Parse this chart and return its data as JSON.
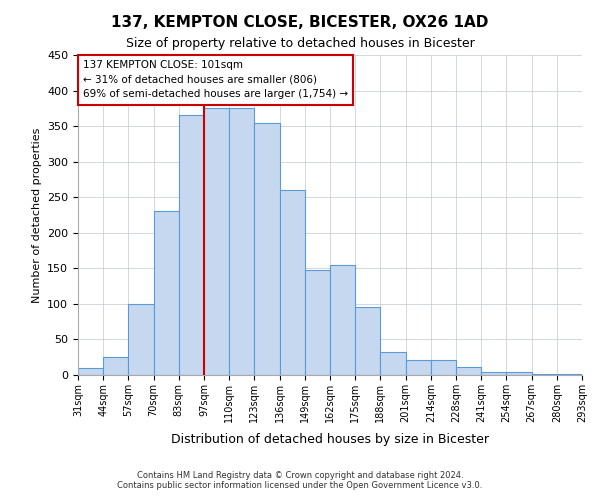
{
  "title": "137, KEMPTON CLOSE, BICESTER, OX26 1AD",
  "subtitle": "Size of property relative to detached houses in Bicester",
  "xlabel": "Distribution of detached houses by size in Bicester",
  "ylabel": "Number of detached properties",
  "bin_labels": [
    "31sqm",
    "44sqm",
    "57sqm",
    "70sqm",
    "83sqm",
    "97sqm",
    "110sqm",
    "123sqm",
    "136sqm",
    "149sqm",
    "162sqm",
    "175sqm",
    "188sqm",
    "201sqm",
    "214sqm",
    "228sqm",
    "241sqm",
    "254sqm",
    "267sqm",
    "280sqm",
    "293sqm"
  ],
  "bar_heights": [
    10,
    25,
    100,
    230,
    365,
    375,
    375,
    355,
    260,
    147,
    155,
    95,
    33,
    21,
    21,
    11,
    4,
    4,
    2,
    2
  ],
  "bar_color": "#c5d8f0",
  "bar_edge_color": "#5b9bd5",
  "vline_x": 5.0,
  "vline_color": "#cc0000",
  "ylim": [
    0,
    450
  ],
  "yticks": [
    0,
    50,
    100,
    150,
    200,
    250,
    300,
    350,
    400,
    450
  ],
  "annotation_title": "137 KEMPTON CLOSE: 101sqm",
  "annotation_line1": "← 31% of detached houses are smaller (806)",
  "annotation_line2": "69% of semi-detached houses are larger (1,754) →",
  "annotation_box_color": "#ffffff",
  "annotation_box_edge": "#cc0000",
  "footer_line1": "Contains HM Land Registry data © Crown copyright and database right 2024.",
  "footer_line2": "Contains public sector information licensed under the Open Government Licence v3.0.",
  "background_color": "#ffffff",
  "grid_color": "#c0c8d8"
}
